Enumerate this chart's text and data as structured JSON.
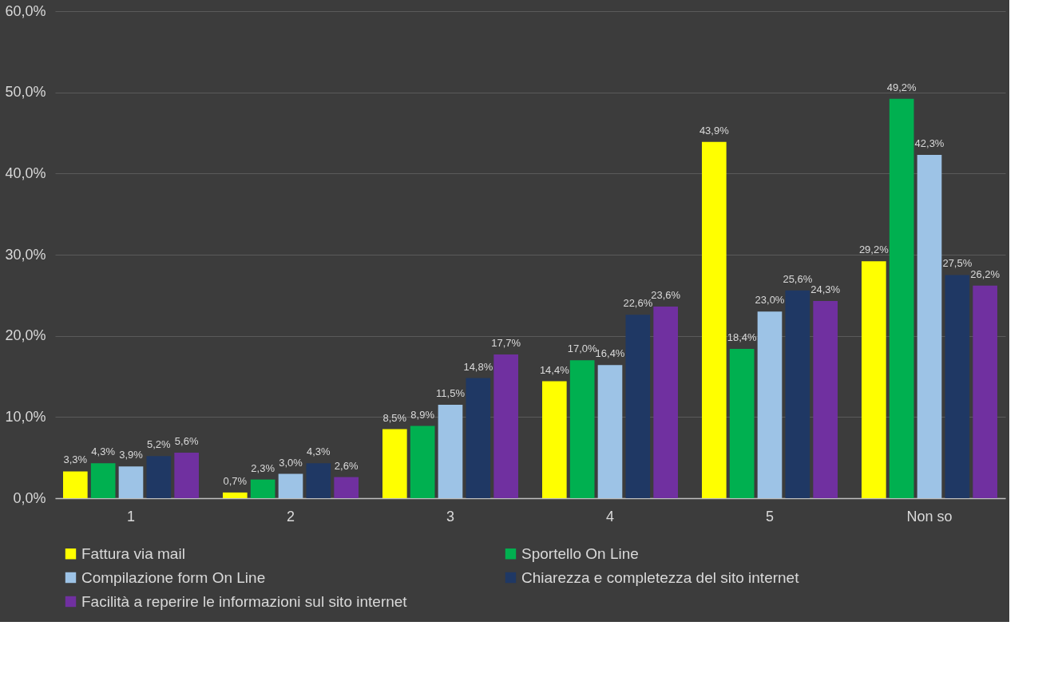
{
  "chart_data": {
    "type": "bar",
    "categories": [
      "1",
      "2",
      "3",
      "4",
      "5",
      "Non so"
    ],
    "series": [
      {
        "name": "Fattura via mail",
        "color": "#ffff00",
        "values": [
          3.3,
          0.7,
          8.5,
          14.4,
          43.9,
          29.2
        ],
        "value_labels": [
          "3,3%",
          "0,7%",
          "8,5%",
          "14,4%",
          "43,9%",
          "29,2%"
        ]
      },
      {
        "name": "Sportello On Line",
        "color": "#00b050",
        "values": [
          4.3,
          2.3,
          8.9,
          17.0,
          18.4,
          49.2
        ],
        "value_labels": [
          "4,3%",
          "2,3%",
          "8,9%",
          "17,0%",
          "18,4%",
          "49,2%"
        ]
      },
      {
        "name": "Compilazione form On Line",
        "color": "#9dc3e6",
        "values": [
          3.9,
          3.0,
          11.5,
          16.4,
          23.0,
          42.3
        ],
        "value_labels": [
          "3,9%",
          "3,0%",
          "11,5%",
          "16,4%",
          "23,0%",
          "42,3%"
        ]
      },
      {
        "name": "Chiarezza e completezza del sito internet",
        "color": "#1f3864",
        "values": [
          5.2,
          4.3,
          14.8,
          22.6,
          25.6,
          27.5
        ],
        "value_labels": [
          "5,2%",
          "4,3%",
          "14,8%",
          "22,6%",
          "25,6%",
          "27,5%"
        ]
      },
      {
        "name": "Facilità a reperire le informazioni sul sito internet",
        "color": "#7030a0",
        "values": [
          5.6,
          2.6,
          17.7,
          23.6,
          24.3,
          26.2
        ],
        "value_labels": [
          "5,6%",
          "2,6%",
          "17,7%",
          "23,6%",
          "24,3%",
          "26,2%"
        ]
      }
    ],
    "ylim": [
      0,
      60
    ],
    "yticks": [
      {
        "value": 0,
        "label": "0,0%"
      },
      {
        "value": 10,
        "label": "10,0%"
      },
      {
        "value": 20,
        "label": "20,0%"
      },
      {
        "value": 30,
        "label": "30,0%"
      },
      {
        "value": 40,
        "label": "40,0%"
      },
      {
        "value": 50,
        "label": "50,0%"
      },
      {
        "value": 60,
        "label": "60,0%"
      }
    ],
    "grid": "y",
    "legend": "bottom"
  }
}
